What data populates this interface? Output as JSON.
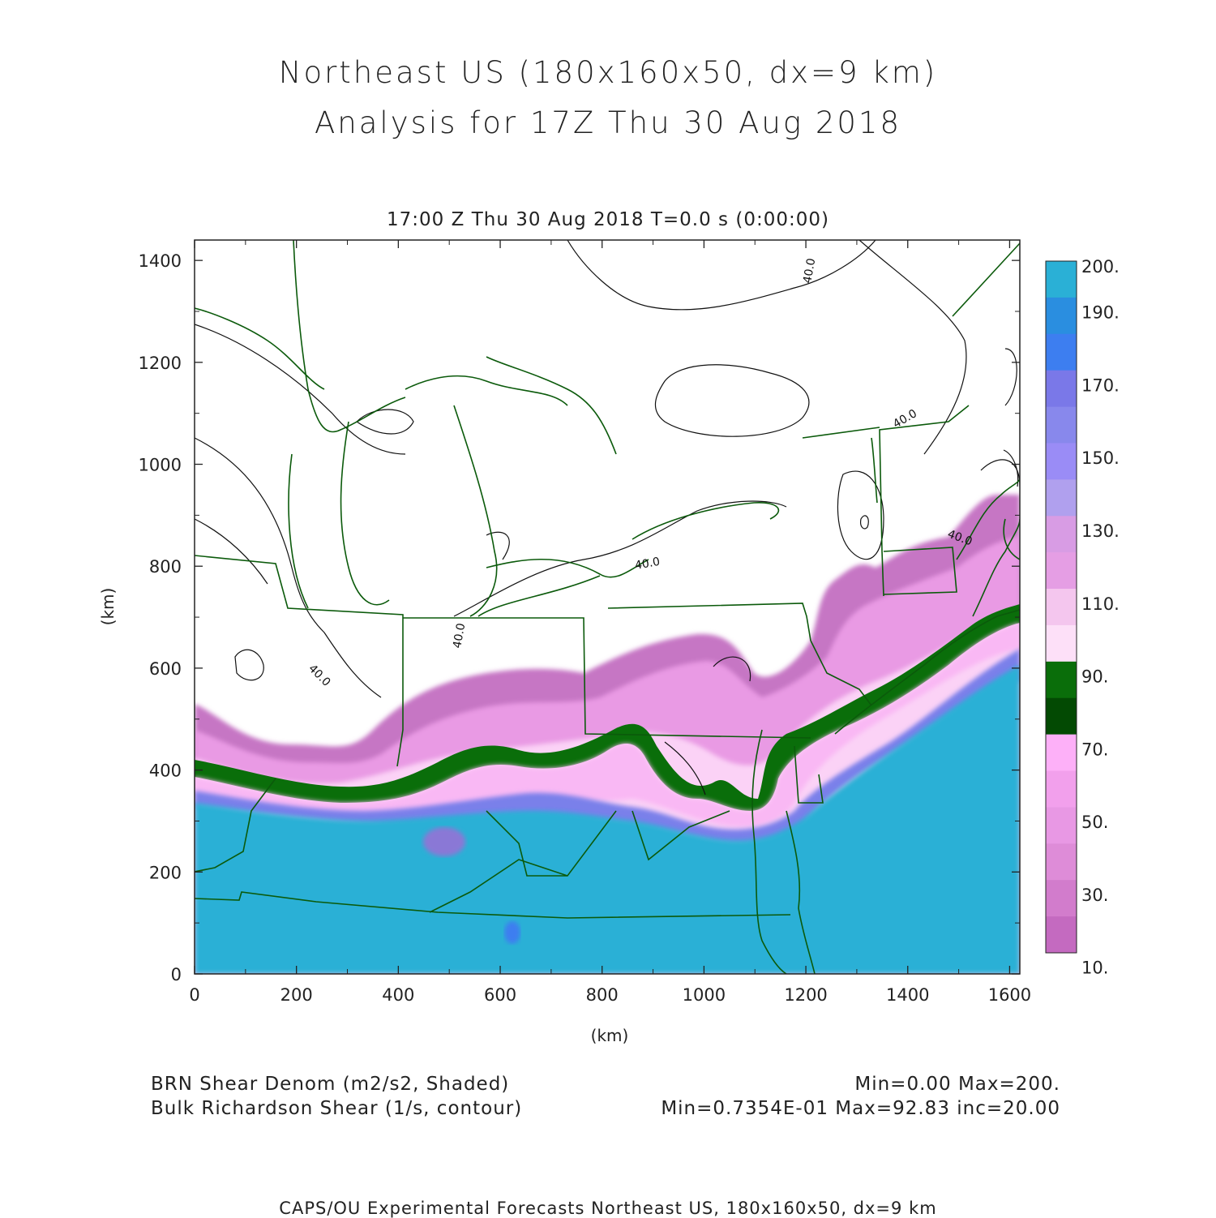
{
  "title_line1": "Northeast US (180x160x50, dx=9 km)",
  "title_line2": "Analysis for 17Z Thu 30 Aug 2018",
  "subtitle": "17:00 Z Thu 30 Aug 2018   T=0.0 s (0:00:00)",
  "axes": {
    "x_label": "(km)",
    "y_label": "(km)",
    "x_range": [
      0,
      1620
    ],
    "y_range": [
      0,
      1440
    ],
    "x_ticks": [
      "0",
      "200",
      "400",
      "600",
      "800",
      "1000",
      "1200",
      "1400",
      "1600"
    ],
    "y_ticks": [
      "0",
      "200",
      "400",
      "600",
      "800",
      "1000",
      "1200",
      "1400"
    ]
  },
  "colorbar": {
    "labels": [
      "200.",
      "190.",
      "170.",
      "150.",
      "130.",
      "110.",
      "90.",
      "70.",
      "50.",
      "30.",
      "10."
    ],
    "colors": [
      "#2ab0d6",
      "#2a8ee0",
      "#3d7ef0",
      "#7a78e8",
      "#8888ec",
      "#9a8cf6",
      "#b0a0ee",
      "#d89ce4",
      "#e59ee4",
      "#f4c6ee",
      "#fde0f8",
      "#0a6e0a",
      "#034a03",
      "#fdb0f8",
      "#f2a0ec",
      "#e898e4",
      "#de8cd8",
      "#d27ccc",
      "#c46ac0"
    ]
  },
  "contour_labels": [
    "40.0",
    "40.0",
    "40.0",
    "40.0",
    "40.0",
    "40.0"
  ],
  "legend": {
    "shaded_field": "BRN Shear Denom (m2/s2, Shaded)",
    "contour_field": "Bulk Richardson Shear (1/s, contour)",
    "shaded_range": "Min=0.00 Max=200.",
    "contour_range": "Min=0.7354E-01 Max=92.83 inc=20.00"
  },
  "credit": "CAPS/OU Experimental Forecasts  Northeast US, 180x160x50, dx=9 km",
  "colors": {
    "ocean_cyan": "#2ab0d6",
    "border_green": "#0b5a0b",
    "band_dark_green": "#0a6e0a"
  }
}
